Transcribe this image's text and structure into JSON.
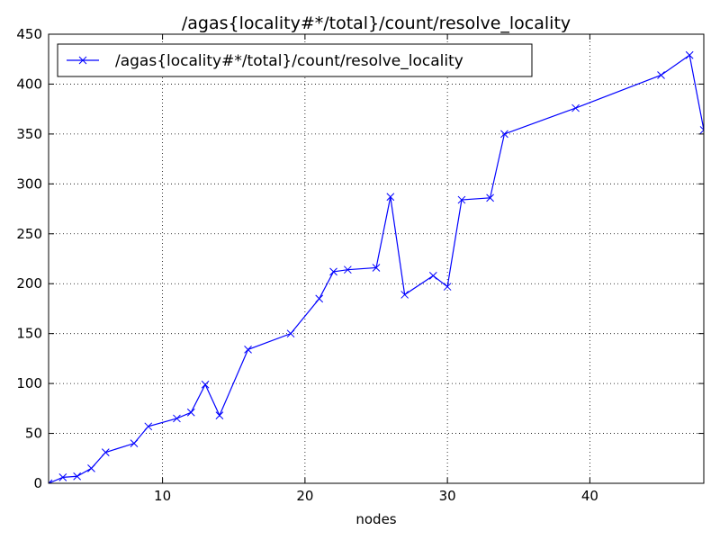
{
  "chart_data": {
    "type": "line",
    "title": "/agas{locality#*/total}/count/resolve_locality",
    "xlabel": "nodes",
    "ylabel": "",
    "xlim": [
      2,
      48
    ],
    "ylim": [
      0,
      450
    ],
    "xticks": [
      10,
      20,
      30,
      40
    ],
    "yticks": [
      0,
      50,
      100,
      150,
      200,
      250,
      300,
      350,
      400,
      450
    ],
    "grid": true,
    "legend_position": "top-left",
    "series": [
      {
        "name": "/agas{locality#*/total}/count/resolve_locality",
        "color": "#0000ff",
        "marker": "x",
        "x": [
          2,
          3,
          4,
          5,
          6,
          8,
          9,
          11,
          12,
          13,
          14,
          16,
          19,
          21,
          22,
          23,
          25,
          26,
          27,
          29,
          30,
          31,
          33,
          34,
          39,
          45,
          47,
          48
        ],
        "y": [
          0,
          6,
          7,
          15,
          31,
          40,
          57,
          65,
          71,
          99,
          68,
          134,
          150,
          185,
          212,
          214,
          216,
          287,
          189,
          208,
          197,
          284,
          286,
          350,
          376,
          409,
          429,
          354
        ]
      }
    ]
  }
}
